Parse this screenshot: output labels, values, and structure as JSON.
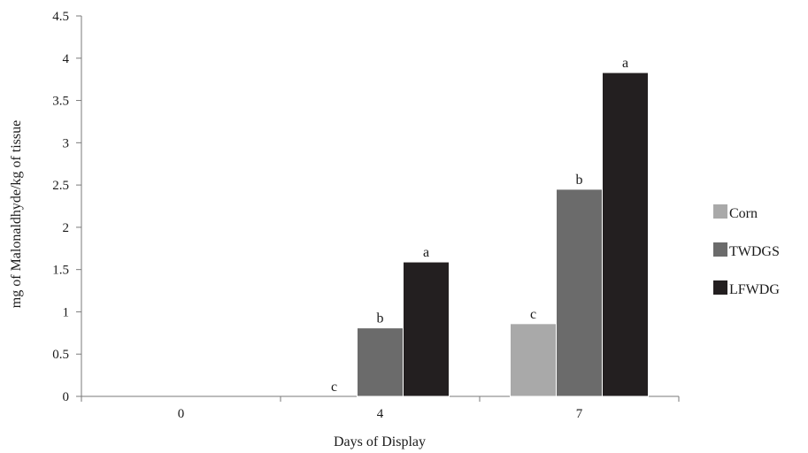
{
  "chart_data": {
    "type": "bar",
    "categories": [
      "0",
      "4",
      "7"
    ],
    "series": [
      {
        "name": "Corn",
        "color": "#a9a9a9",
        "values": [
          0,
          0,
          0.86
        ],
        "labels": [
          "",
          "c",
          "c"
        ]
      },
      {
        "name": "TWDGS",
        "color": "#6b6b6b",
        "values": [
          0,
          0.81,
          2.45
        ],
        "labels": [
          "",
          "b",
          "b"
        ]
      },
      {
        "name": "LFWDG",
        "color": "#231f20",
        "values": [
          0,
          1.59,
          3.83
        ],
        "labels": [
          "",
          "a",
          "a"
        ]
      }
    ],
    "title": "",
    "xlabel": "Days of Display",
    "ylabel": "mg of Malonaldhyde/kg of tissue",
    "ylim": [
      0,
      4.5
    ],
    "yticks": [
      "0",
      "0.5",
      "1",
      "1.5",
      "2",
      "2.5",
      "3",
      "3.5",
      "4",
      "4.5"
    ],
    "grid": false,
    "legend_position": "right"
  }
}
